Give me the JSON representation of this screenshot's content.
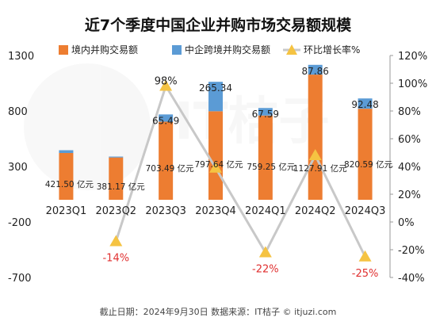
{
  "chart_data": {
    "type": "bar",
    "title": "近7个季度中国企业并购市场交易额规模",
    "categories": [
      "2023Q1",
      "2023Q2",
      "2023Q3",
      "2023Q4",
      "2024Q1",
      "2024Q2",
      "2024Q3"
    ],
    "series": [
      {
        "name": "境内并购交易额",
        "type": "bar",
        "axis": "left",
        "color": "#ED7D31",
        "values": [
          421.5,
          381.17,
          703.49,
          797.64,
          759.25,
          1127.91,
          820.59
        ],
        "data_labels": [
          "421.50 亿元",
          "381.17 亿元",
          "703.49 亿元",
          "797.64 亿元",
          "759.25 亿元",
          "1127.91 亿元",
          "820.59 亿元"
        ]
      },
      {
        "name": "中企跨境并购交易额",
        "type": "bar",
        "axis": "left",
        "color": "#5B9BD5",
        "values": [
          25,
          8,
          65.49,
          265.34,
          67.59,
          87.86,
          92.48
        ],
        "data_labels": [
          "",
          "",
          "65.49",
          "265.34",
          "67.59",
          "87.86",
          "92.48"
        ]
      },
      {
        "name": "环比增长率%",
        "type": "line",
        "axis": "right",
        "color": "#C8C8C8",
        "marker_color": "#F5C342",
        "values": [
          null,
          -14,
          98,
          39,
          -22,
          48,
          -25
        ],
        "data_labels": [
          "",
          "-14%",
          "98%",
          "",
          "-22%",
          "",
          "-25%"
        ],
        "label_colors": [
          "",
          "#E03030",
          "#222222",
          "",
          "#E03030",
          "",
          "#E03030"
        ]
      }
    ],
    "y_left": {
      "min": -700,
      "max": 1300,
      "ticks": [
        -700,
        -200,
        300,
        800,
        1300
      ],
      "tick_labels": [
        "-700",
        "-200",
        "300",
        "800",
        "1300"
      ]
    },
    "y_right": {
      "min": -40,
      "max": 120,
      "ticks": [
        -40,
        -20,
        0,
        20,
        40,
        60,
        80,
        100,
        120
      ],
      "tick_labels": [
        "-40%",
        "-20%",
        "0%",
        "20%",
        "40%",
        "60%",
        "80%",
        "100%",
        "120%"
      ]
    },
    "grid": false,
    "legend": "top",
    "footer": "截止日期：2024年9月30日    数据来源：IT桔子 © itjuzi.com"
  }
}
